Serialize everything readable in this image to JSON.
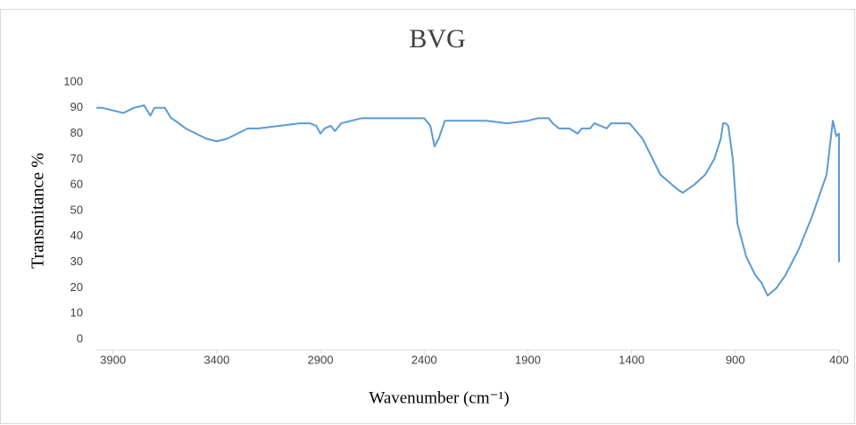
{
  "chart_data": {
    "type": "line",
    "title": "BVG",
    "x_label": "Wavenumber (cm⁻¹)",
    "y_label": "Transmitance %",
    "xlim": [
      3980,
      400
    ],
    "xticks": [
      3900,
      3400,
      2900,
      2400,
      1900,
      1400,
      900,
      400
    ],
    "ylim": [
      0,
      100
    ],
    "yticks": [
      0,
      10,
      20,
      30,
      40,
      50,
      60,
      70,
      80,
      90,
      100
    ],
    "grid": false,
    "x": [
      3980,
      3950,
      3900,
      3850,
      3800,
      3750,
      3720,
      3700,
      3650,
      3620,
      3600,
      3550,
      3500,
      3450,
      3400,
      3350,
      3300,
      3250,
      3200,
      3100,
      3000,
      2950,
      2920,
      2900,
      2880,
      2850,
      2830,
      2800,
      2700,
      2600,
      2500,
      2400,
      2370,
      2350,
      2330,
      2300,
      2200,
      2100,
      2000,
      1900,
      1850,
      1800,
      1780,
      1750,
      1700,
      1680,
      1660,
      1640,
      1600,
      1580,
      1550,
      1520,
      1500,
      1460,
      1410,
      1347,
      1261,
      1174,
      1153,
      1100,
      1045,
      1002,
      970,
      959,
      947,
      934,
      912,
      890,
      847,
      804,
      774,
      744,
      701,
      658,
      594,
      529,
      486,
      460,
      430,
      413,
      400,
      400
    ],
    "series": [
      {
        "name": "BVG",
        "color": "#5b9bd5",
        "values": [
          90,
          90,
          89,
          88,
          90,
          91,
          87,
          90,
          90,
          86,
          85,
          82,
          80,
          78,
          77,
          78,
          80,
          82,
          82,
          83,
          84,
          84,
          83,
          80,
          82,
          83,
          81,
          84,
          86,
          86,
          86,
          86,
          83,
          75,
          78,
          85,
          85,
          85,
          84,
          85,
          86,
          86,
          84,
          82,
          82,
          81,
          80,
          82,
          82,
          84,
          83,
          82,
          84,
          84,
          84,
          78,
          64,
          58,
          57,
          60,
          64,
          70,
          78,
          84,
          84,
          83,
          70,
          45,
          32,
          25,
          22,
          17,
          20,
          25,
          35,
          48,
          58,
          64,
          85,
          79,
          80,
          30
        ]
      }
    ]
  }
}
